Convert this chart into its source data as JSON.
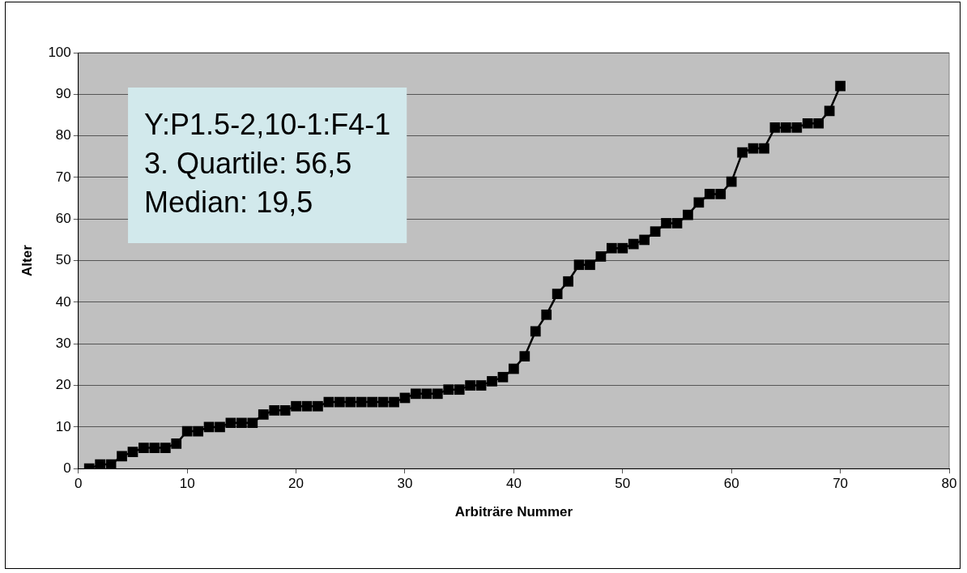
{
  "chart_data": {
    "type": "line",
    "xlabel": "Arbiträre Nummer",
    "ylabel": "Alter",
    "x": [
      1,
      2,
      3,
      4,
      5,
      6,
      7,
      8,
      9,
      10,
      11,
      12,
      13,
      14,
      15,
      16,
      17,
      18,
      19,
      20,
      21,
      22,
      23,
      24,
      25,
      26,
      27,
      28,
      29,
      30,
      31,
      32,
      33,
      34,
      35,
      36,
      37,
      38,
      39,
      40,
      41,
      42,
      43,
      44,
      45,
      46,
      47,
      48,
      49,
      50,
      51,
      52,
      53,
      54,
      55,
      56,
      57,
      58,
      59,
      60,
      61,
      62,
      63,
      64,
      65,
      66,
      67,
      68,
      69,
      70
    ],
    "values": [
      0,
      1,
      1,
      3,
      4,
      5,
      5,
      5,
      6,
      9,
      9,
      10,
      10,
      11,
      11,
      11,
      13,
      14,
      14,
      15,
      15,
      15,
      16,
      16,
      16,
      16,
      16,
      16,
      16,
      17,
      18,
      18,
      18,
      19,
      19,
      20,
      20,
      21,
      22,
      24,
      27,
      33,
      37,
      42,
      45,
      49,
      49,
      51,
      53,
      53,
      54,
      55,
      57,
      59,
      59,
      61,
      64,
      66,
      66,
      69,
      76,
      77,
      77,
      82,
      82,
      82,
      83,
      83,
      86,
      92
    ],
    "color": "#000000",
    "marker": "square",
    "line_style": "solid",
    "xlim": [
      0,
      80
    ],
    "xticks": [
      0,
      10,
      20,
      30,
      40,
      50,
      60,
      70,
      80
    ],
    "ylim": [
      0,
      100
    ],
    "yticks": [
      0,
      10,
      20,
      30,
      40,
      50,
      60,
      70,
      80,
      90,
      100
    ],
    "grid": "y",
    "legend": false,
    "annotations": [
      "Y:P1.5-2,10-1:F4-1",
      "3. Quartile: 56,5",
      "Median: 19,5"
    ]
  }
}
